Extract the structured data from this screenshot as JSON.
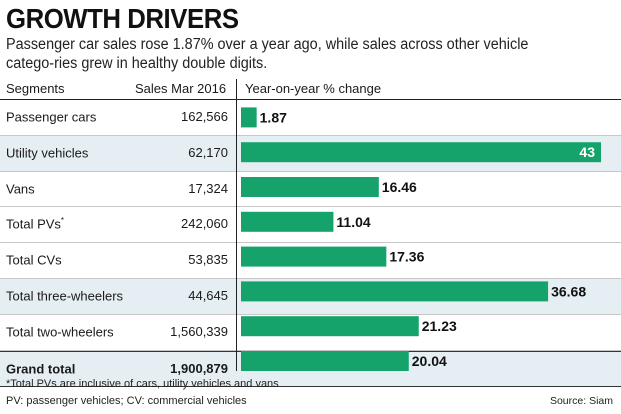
{
  "title": "GROWTH DRIVERS",
  "subtitle": "Passenger car sales rose 1.87% over a year ago, while sales across other vehicle catego-ries grew in healthy double digits.",
  "headers": {
    "segments": "Segments",
    "sales": "Sales Mar 2016",
    "yoy": "Year-on-year % change"
  },
  "rows": [
    {
      "segment": "Passenger cars",
      "sup": "",
      "sales": "162,566",
      "change_label": "1.87"
    },
    {
      "segment": "Utility vehicles",
      "sup": "",
      "sales": "62,170",
      "change_label": "43"
    },
    {
      "segment": "Vans",
      "sup": "",
      "sales": "17,324",
      "change_label": "16.46"
    },
    {
      "segment": "Total PVs",
      "sup": "*",
      "sales": "242,060",
      "change_label": "11.04"
    },
    {
      "segment": "Total CVs",
      "sup": "",
      "sales": "53,835",
      "change_label": "17.36"
    },
    {
      "segment": "Total three-wheelers",
      "sup": "",
      "sales": "44,645",
      "change_label": "36.68"
    },
    {
      "segment": "Total two-wheelers",
      "sup": "",
      "sales": "1,560,339",
      "change_label": "21.23"
    },
    {
      "segment": "Grand total",
      "sup": "",
      "sales": "1,900,879",
      "change_label": "20.04"
    }
  ],
  "footnote_1": "*Total PVs are inclusive of cars, utility vehicles and vans",
  "footnote_2": "PV: passenger vehicles; CV: commercial vehicles",
  "source": "Source: Siam",
  "colors": {
    "bar": "#15a36b",
    "shade": "#e5eef3"
  },
  "chart_data": {
    "type": "bar",
    "orientation": "horizontal",
    "categories": [
      "Passenger cars",
      "Utility vehicles",
      "Vans",
      "Total PVs",
      "Total CVs",
      "Total three-wheelers",
      "Total two-wheelers",
      "Grand total"
    ],
    "values": [
      1.87,
      43,
      16.46,
      11.04,
      17.36,
      36.68,
      21.23,
      20.04
    ],
    "title": "GROWTH DRIVERS",
    "xlabel": "Year-on-year % change",
    "ylabel": "Segments",
    "xlim": [
      0,
      43
    ],
    "grid": false
  }
}
